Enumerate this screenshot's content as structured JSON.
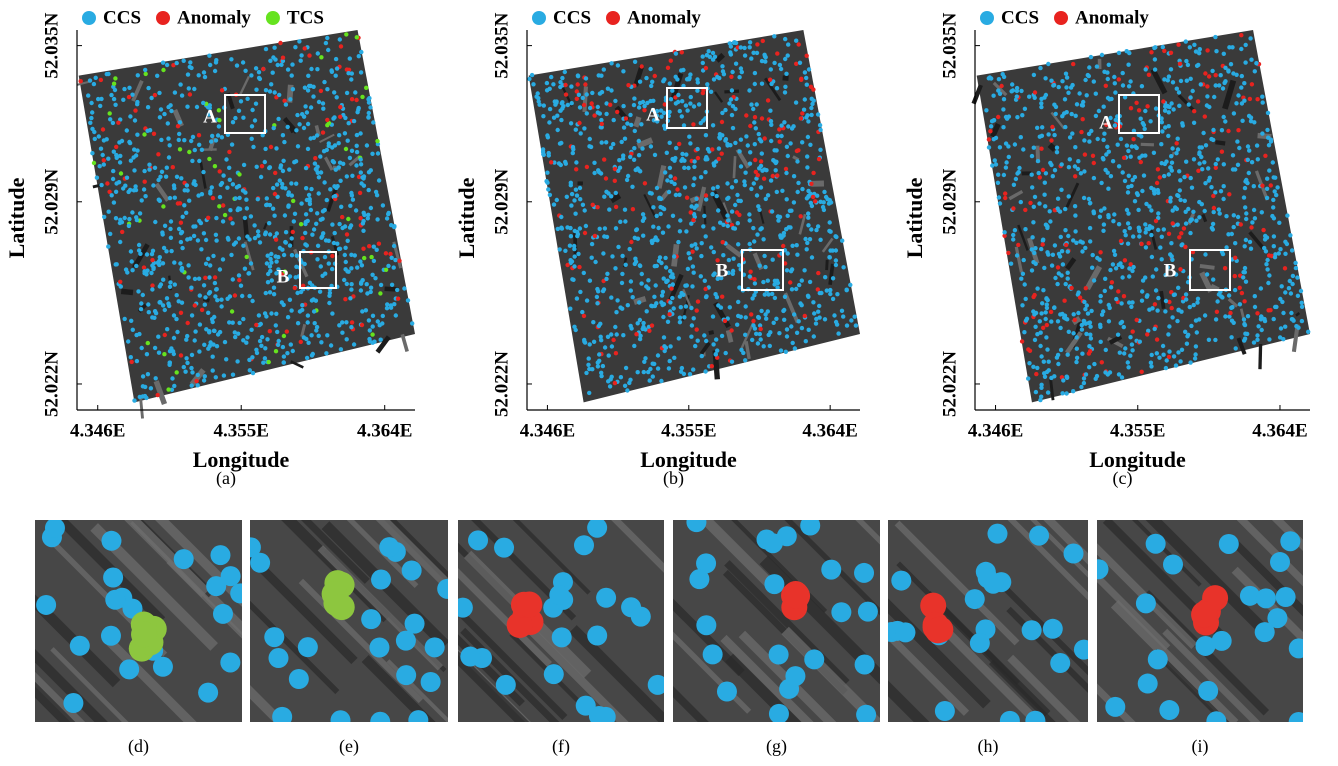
{
  "chart_data": [
    {
      "type": "scatter",
      "caption": "(a)",
      "x_label": "Longitude",
      "y_label": "Latitude",
      "xlim": [
        4.3447,
        4.3659
      ],
      "xticks": [
        {
          "value": 4.346,
          "label": "4.346E"
        },
        {
          "value": 4.355,
          "label": "4.355E"
        },
        {
          "value": 4.364,
          "label": "4.364E"
        }
      ],
      "ylim": [
        52.021,
        52.0356
      ],
      "yticks": [
        {
          "value": 52.022,
          "label": "52.022N"
        },
        {
          "value": 52.029,
          "label": "52.029N"
        },
        {
          "value": 52.035,
          "label": "52.035N"
        }
      ],
      "series": [
        {
          "name": "CCS",
          "color": "#29abe2"
        },
        {
          "name": "Anomaly",
          "color": "#e8231f"
        },
        {
          "name": "TCS",
          "color": "#66e31f"
        }
      ],
      "annotations": [
        "A",
        "B"
      ]
    },
    {
      "type": "scatter",
      "caption": "(b)",
      "x_label": "Longitude",
      "y_label": "Latitude",
      "xlim": [
        4.3447,
        4.3659
      ],
      "xticks": [
        {
          "value": 4.346,
          "label": "4.346E"
        },
        {
          "value": 4.355,
          "label": "4.355E"
        },
        {
          "value": 4.364,
          "label": "4.364E"
        }
      ],
      "ylim": [
        52.021,
        52.0356
      ],
      "yticks": [
        {
          "value": 52.022,
          "label": "52.022N"
        },
        {
          "value": 52.029,
          "label": "52.029N"
        },
        {
          "value": 52.035,
          "label": "52.035N"
        }
      ],
      "series": [
        {
          "name": "CCS",
          "color": "#29abe2"
        },
        {
          "name": "Anomaly",
          "color": "#e8231f"
        }
      ],
      "annotations": [
        "A",
        "B"
      ]
    },
    {
      "type": "scatter",
      "caption": "(c)",
      "x_label": "Longitude",
      "y_label": "Latitude",
      "xlim": [
        4.3447,
        4.3659
      ],
      "xticks": [
        {
          "value": 4.346,
          "label": "4.346E"
        },
        {
          "value": 4.355,
          "label": "4.355E"
        },
        {
          "value": 4.364,
          "label": "4.364E"
        }
      ],
      "ylim": [
        52.021,
        52.0356
      ],
      "yticks": [
        {
          "value": 52.022,
          "label": "52.022N"
        },
        {
          "value": 52.029,
          "label": "52.029N"
        },
        {
          "value": 52.035,
          "label": "52.035N"
        }
      ],
      "series": [
        {
          "name": "CCS",
          "color": "#29abe2"
        },
        {
          "name": "Anomaly",
          "color": "#e8231f"
        }
      ],
      "annotations": [
        "A",
        "B"
      ]
    }
  ],
  "zoom_panels": [
    {
      "caption": "(d)",
      "highlight_color": "#8dc63f"
    },
    {
      "caption": "(e)",
      "highlight_color": "#8dc63f"
    },
    {
      "caption": "(f)",
      "highlight_color": "#e8332a"
    },
    {
      "caption": "(g)",
      "highlight_color": "#e8332a"
    },
    {
      "caption": "(h)",
      "highlight_color": "#e8332a"
    },
    {
      "caption": "(i)",
      "highlight_color": "#e8332a"
    }
  ]
}
